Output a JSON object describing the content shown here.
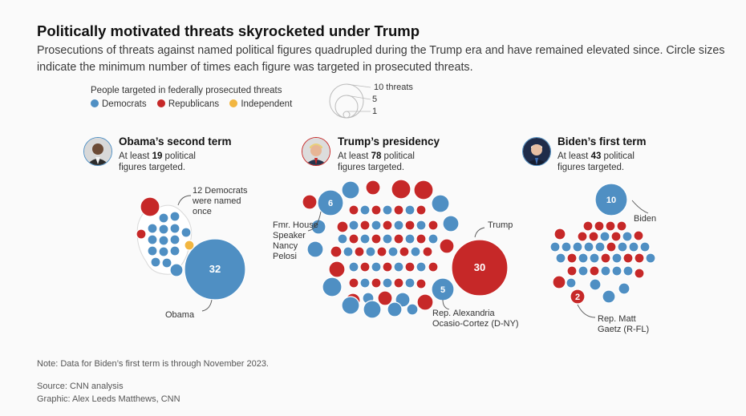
{
  "title": "Politically motivated threats skyrocketed under Trump",
  "subtitle": "Prosecutions of threats against named political figures quadrupled during the Trump era and have remained elevated since. Circle sizes indicate the minimum number of times each figure was targeted in prosecuted threats.",
  "colors": {
    "democrat": "#4f8fc3",
    "republican": "#c62828",
    "independent": "#f2b640"
  },
  "legend": {
    "title": "People targeted in federally prosecuted threats",
    "items": [
      {
        "label": "Democrats",
        "color": "#4f8fc3"
      },
      {
        "label": "Republicans",
        "color": "#c62828"
      },
      {
        "label": "Independent",
        "color": "#f2b640"
      }
    ],
    "sizes": [
      {
        "label": "10 threats",
        "value": 10
      },
      {
        "label": "5",
        "value": 5
      },
      {
        "label": "1",
        "value": 1
      }
    ]
  },
  "panels": [
    {
      "title": "Obama’s second term",
      "sub_prefix": "At least ",
      "count": "19",
      "sub_suffix_1": " political",
      "sub_line2": "figures targeted.",
      "avatar_icon": "obama-portrait"
    },
    {
      "title": "Trump’s presidency",
      "sub_prefix": "At least ",
      "count": "78",
      "sub_suffix_1": " political",
      "sub_line2": "figures targeted.",
      "avatar_icon": "trump-portrait"
    },
    {
      "title": "Biden’s first term",
      "sub_prefix": "At least ",
      "count": "43",
      "sub_suffix_1": " political",
      "sub_line2": "figures targeted.",
      "avatar_icon": "biden-portrait"
    }
  ],
  "annotations": {
    "obama_dems": [
      "12 Democrats",
      "were named",
      "once"
    ],
    "obama": "Obama",
    "pelosi": [
      "Fmr. House",
      "Speaker",
      "Nancy",
      "Pelosi"
    ],
    "trump": "Trump",
    "aoc": [
      "Rep. Alexandria",
      "Ocasio-Cortez (D-NY)"
    ],
    "biden": "Biden",
    "gaetz": [
      "Rep. Matt",
      "Gaetz (R-FL)"
    ]
  },
  "chart_data": {
    "type": "bubble",
    "title": "Politically motivated threats skyrocketed under Trump",
    "size_encoding": "minimum number of times targeted in prosecuted threats",
    "periods": [
      {
        "name": "Obama’s second term",
        "figures_targeted": 19,
        "labeled": [
          {
            "name": "Obama",
            "party": "democrat",
            "threats": 32
          }
        ],
        "notes": "12 Democrats were named once"
      },
      {
        "name": "Trump’s presidency",
        "figures_targeted": 78,
        "labeled": [
          {
            "name": "Trump",
            "party": "republican",
            "threats": 30
          },
          {
            "name": "Fmr. House Speaker Nancy Pelosi",
            "party": "democrat",
            "threats": 6
          },
          {
            "name": "Rep. Alexandria Ocasio-Cortez (D-NY)",
            "party": "democrat",
            "threats": 5
          }
        ]
      },
      {
        "name": "Biden’s first term",
        "figures_targeted": 43,
        "labeled": [
          {
            "name": "Biden",
            "party": "democrat",
            "threats": 10
          },
          {
            "name": "Rep. Matt Gaetz (R-FL)",
            "party": "republican",
            "threats": 2
          }
        ]
      }
    ]
  },
  "note": "Note: Data for Biden’s first term is through November 2023.",
  "source": "Source: CNN analysis",
  "graphic": "Graphic: Alex Leeds Matthews, CNN"
}
